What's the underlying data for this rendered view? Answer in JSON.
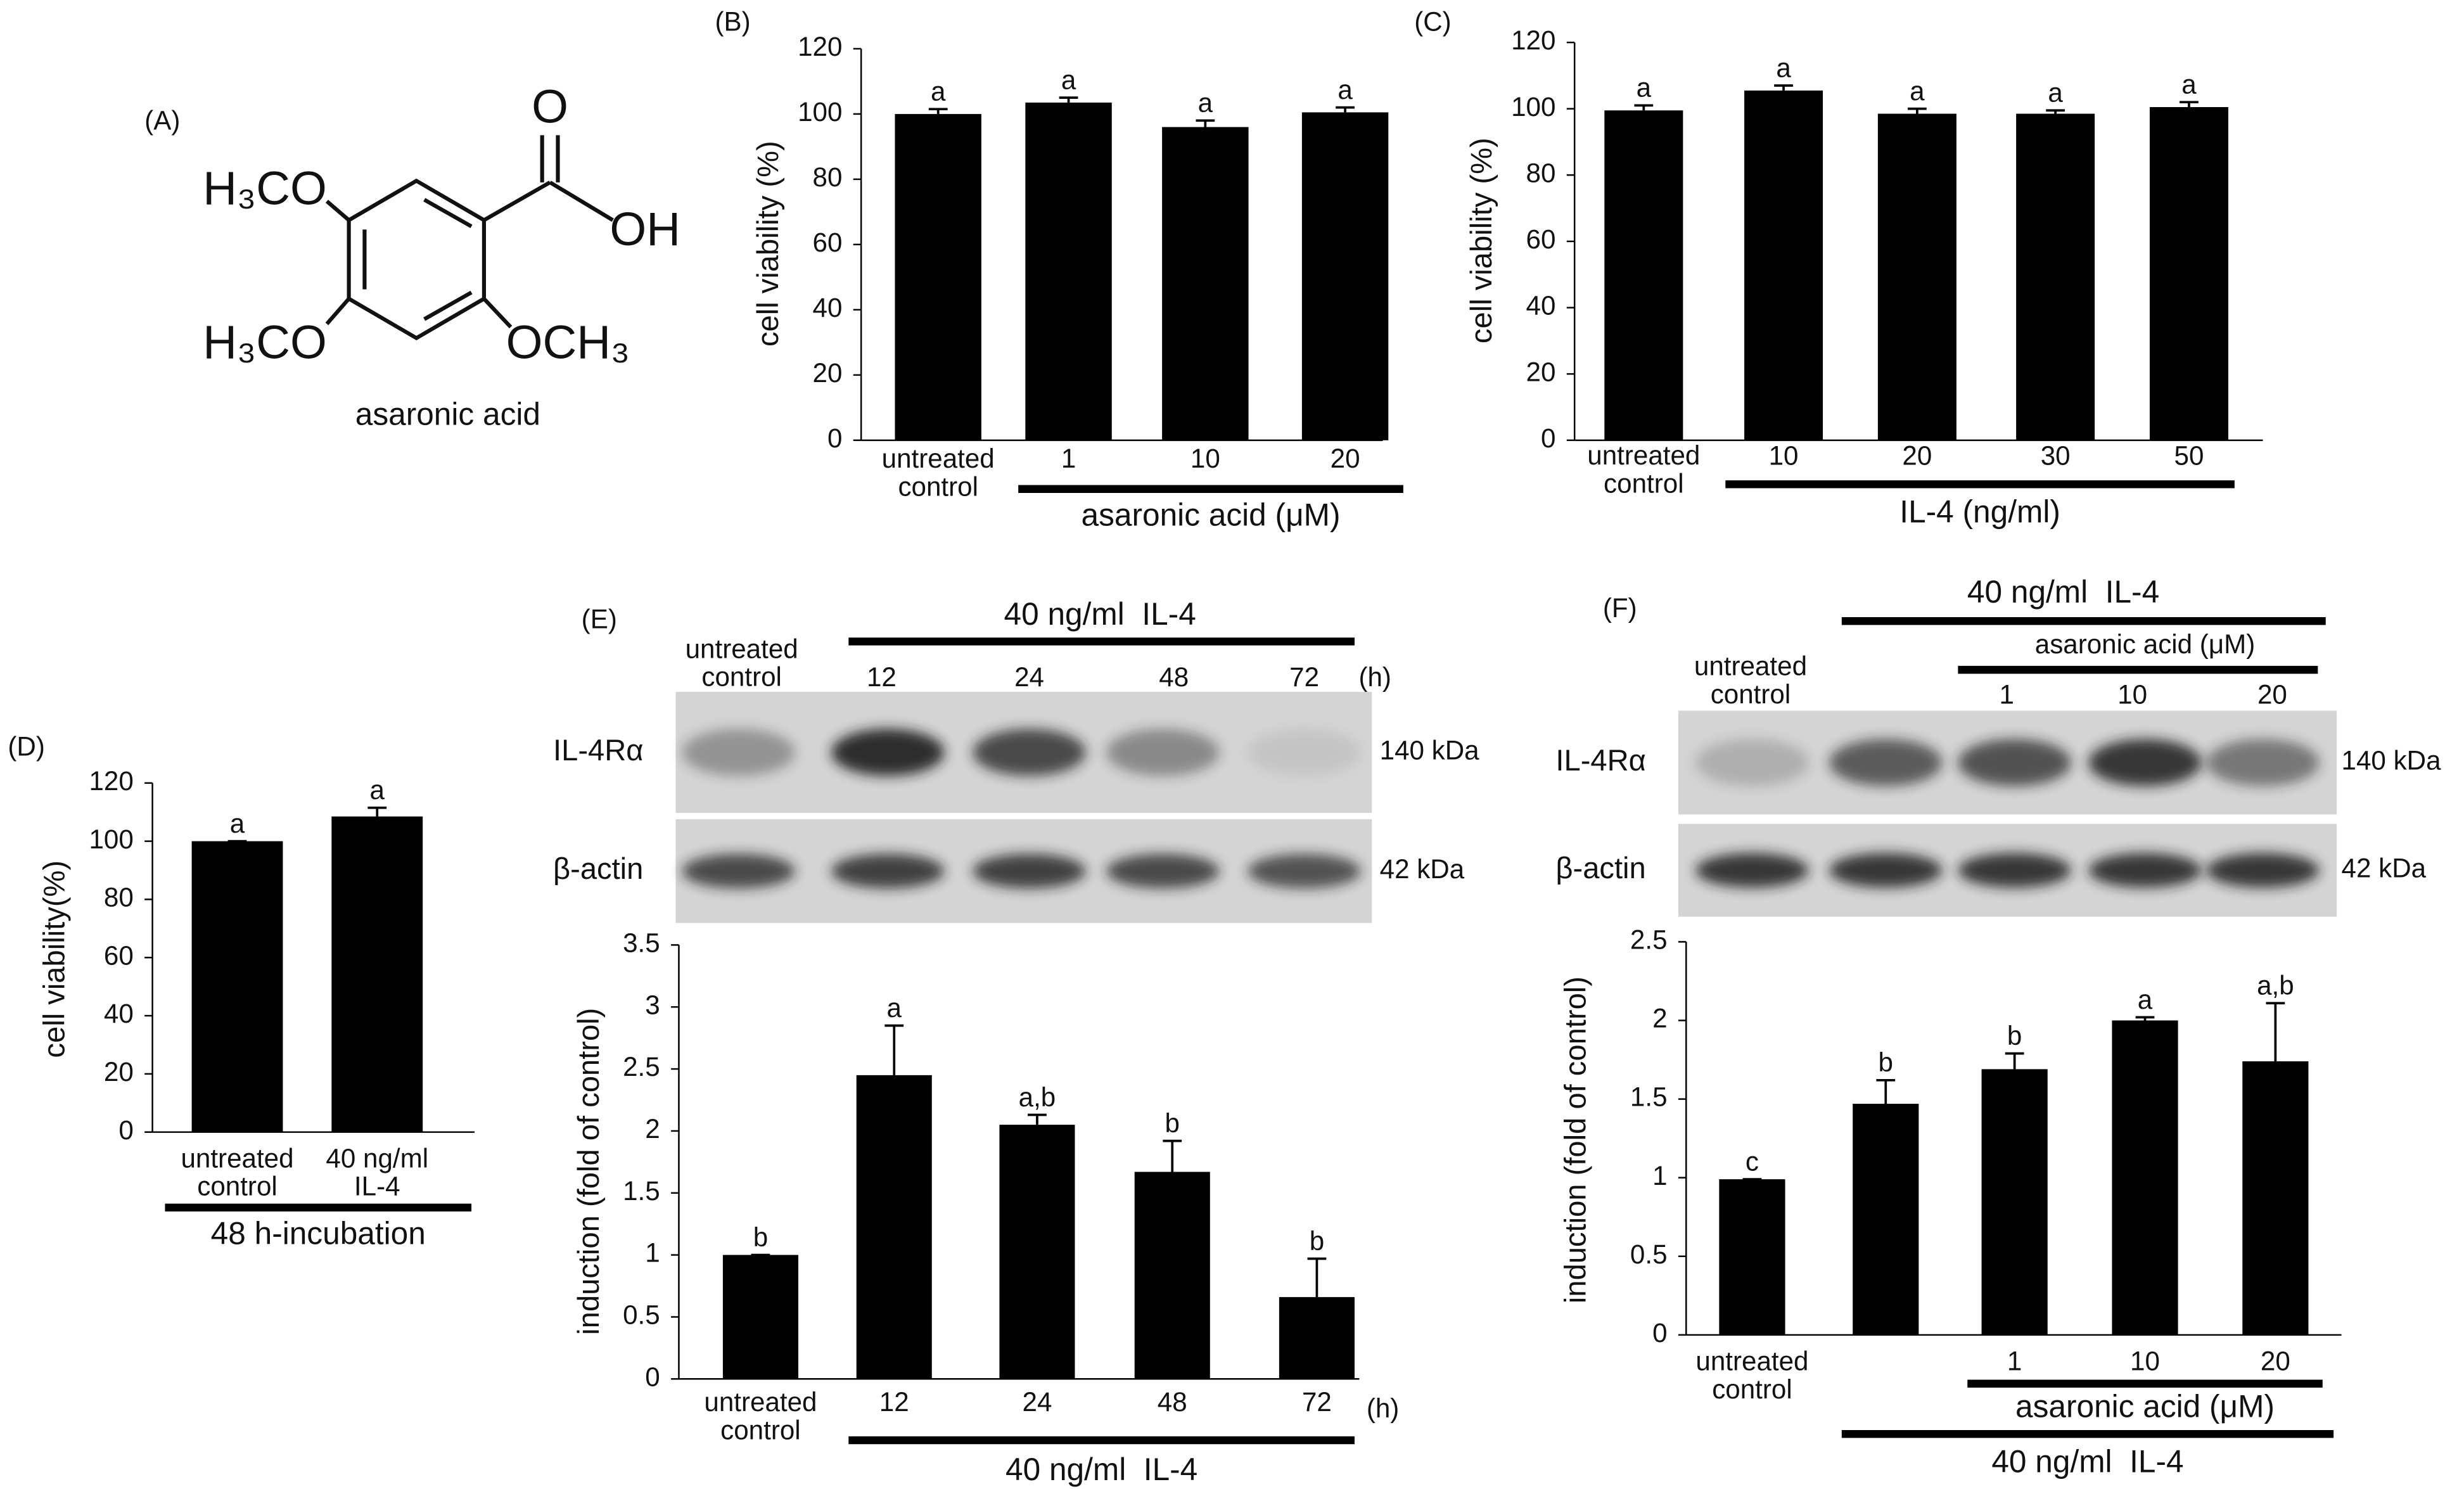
{
  "structure": {
    "panel": "(A)",
    "atoms": [
      "O",
      "OH",
      "H₃CO",
      "H₃CO",
      "OCH₃"
    ],
    "name": "asaronic acid"
  },
  "blots": [
    {
      "panel": "(E)",
      "header": "40 ng/ml  IL-4",
      "lanes": [
        "untreated\ncontrol",
        "12",
        "24",
        "48",
        "72"
      ],
      "unit": "(h)",
      "rows": [
        {
          "label": "IL-4Rα",
          "size": "140 kDa"
        },
        {
          "label": "β-actin",
          "size": "42 kDa"
        }
      ]
    },
    {
      "panel": "(F)",
      "header": "40 ng/ml  IL-4",
      "subheader": "asaronic acid (μM)",
      "lanes": [
        "untreated\ncontrol",
        null,
        "1",
        "10",
        "20"
      ],
      "rows": [
        {
          "label": "IL-4Rα",
          "size": "140 kDa"
        },
        {
          "label": "β-actin",
          "size": "42 kDa"
        }
      ]
    }
  ],
  "chart_data": [
    {
      "type": "bar",
      "panel": "(B)",
      "ylabel": "cell viability (%)",
      "categories": [
        "untreated\ncontrol",
        "1",
        "10",
        "20"
      ],
      "values": [
        100,
        103.5,
        96,
        100.5
      ],
      "errors": [
        1.5,
        1.5,
        2,
        1.5
      ],
      "annotations": [
        "a",
        "a",
        "a",
        "a"
      ],
      "ylim": [
        0,
        120
      ],
      "yticks": [
        0,
        20,
        40,
        60,
        80,
        100,
        120
      ],
      "groups": [
        "asaronic acid (μM)"
      ],
      "color": "#000000"
    },
    {
      "type": "bar",
      "panel": "(C)",
      "ylabel": "cell viability (%)",
      "categories": [
        "untreated\ncontrol",
        "10",
        "20",
        "30",
        "50"
      ],
      "values": [
        99.5,
        105.5,
        98.5,
        98.5,
        100.5
      ],
      "errors": [
        1.5,
        1.5,
        1.5,
        1,
        1.5
      ],
      "annotations": [
        "a",
        "a",
        "a",
        "a",
        "a"
      ],
      "ylim": [
        0,
        120
      ],
      "yticks": [
        0,
        20,
        40,
        60,
        80,
        100,
        120
      ],
      "groups": [
        "IL-4 (ng/ml)"
      ],
      "color": "#000000"
    },
    {
      "type": "bar",
      "panel": "(D)",
      "ylabel": "cell viability(%)",
      "categories": [
        "untreated\ncontrol",
        "40 ng/ml\nIL-4"
      ],
      "values": [
        100,
        108.5
      ],
      "errors": [
        0,
        3
      ],
      "annotations": [
        "a",
        "a"
      ],
      "ylim": [
        0,
        120
      ],
      "yticks": [
        0,
        20,
        40,
        60,
        80,
        100,
        120
      ],
      "groups": [
        "48 h-incubation"
      ],
      "color": "#000000"
    },
    {
      "type": "bar",
      "ylabel": "induction (fold of control)",
      "categories": [
        "untreated\ncontrol",
        "12",
        "24",
        "48",
        "72"
      ],
      "unit": "(h)",
      "values": [
        1,
        2.45,
        2.05,
        1.67,
        0.66
      ],
      "errors": [
        0,
        0.4,
        0.08,
        0.25,
        0.31
      ],
      "annotations": [
        "b",
        "a",
        "a,b",
        "b",
        "b"
      ],
      "ylim": [
        0,
        3.5
      ],
      "yticks": [
        0,
        0.5,
        1,
        1.5,
        2,
        2.5,
        3,
        3.5
      ],
      "groups": [
        "40 ng/ml  IL-4"
      ],
      "color": "#000000"
    },
    {
      "type": "bar",
      "ylabel": "induction (fold of control)",
      "categories": [
        "untreated\ncontrol",
        null,
        "1",
        "10",
        "20"
      ],
      "values": [
        0.99,
        1.47,
        1.69,
        2.0,
        1.74
      ],
      "errors": [
        0,
        0.15,
        0.1,
        0.02,
        0.37
      ],
      "annotations": [
        "c",
        "b",
        "b",
        "a",
        "a,b"
      ],
      "ylim": [
        0,
        2.5
      ],
      "yticks": [
        0,
        0.5,
        1,
        1.5,
        2,
        2.5
      ],
      "groups": [
        "asaronic acid (μM)",
        "40 ng/ml  IL-4"
      ],
      "color": "#000000"
    }
  ]
}
